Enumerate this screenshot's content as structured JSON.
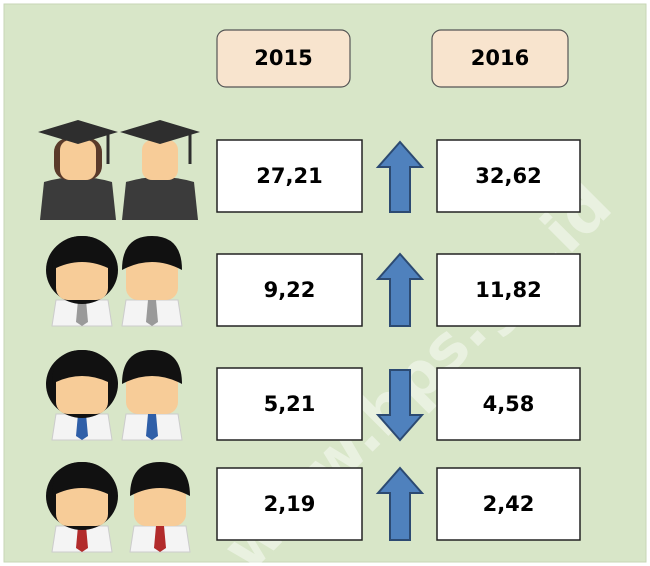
{
  "header": {
    "years": [
      "2015",
      "2016"
    ]
  },
  "rows": [
    [
      "27,21",
      "32,62"
    ],
    [
      "9,22",
      "11,82"
    ],
    [
      "5,21",
      "4,58"
    ],
    [
      "2,19",
      "2,42"
    ]
  ],
  "watermark": "www.bps.go.id"
}
